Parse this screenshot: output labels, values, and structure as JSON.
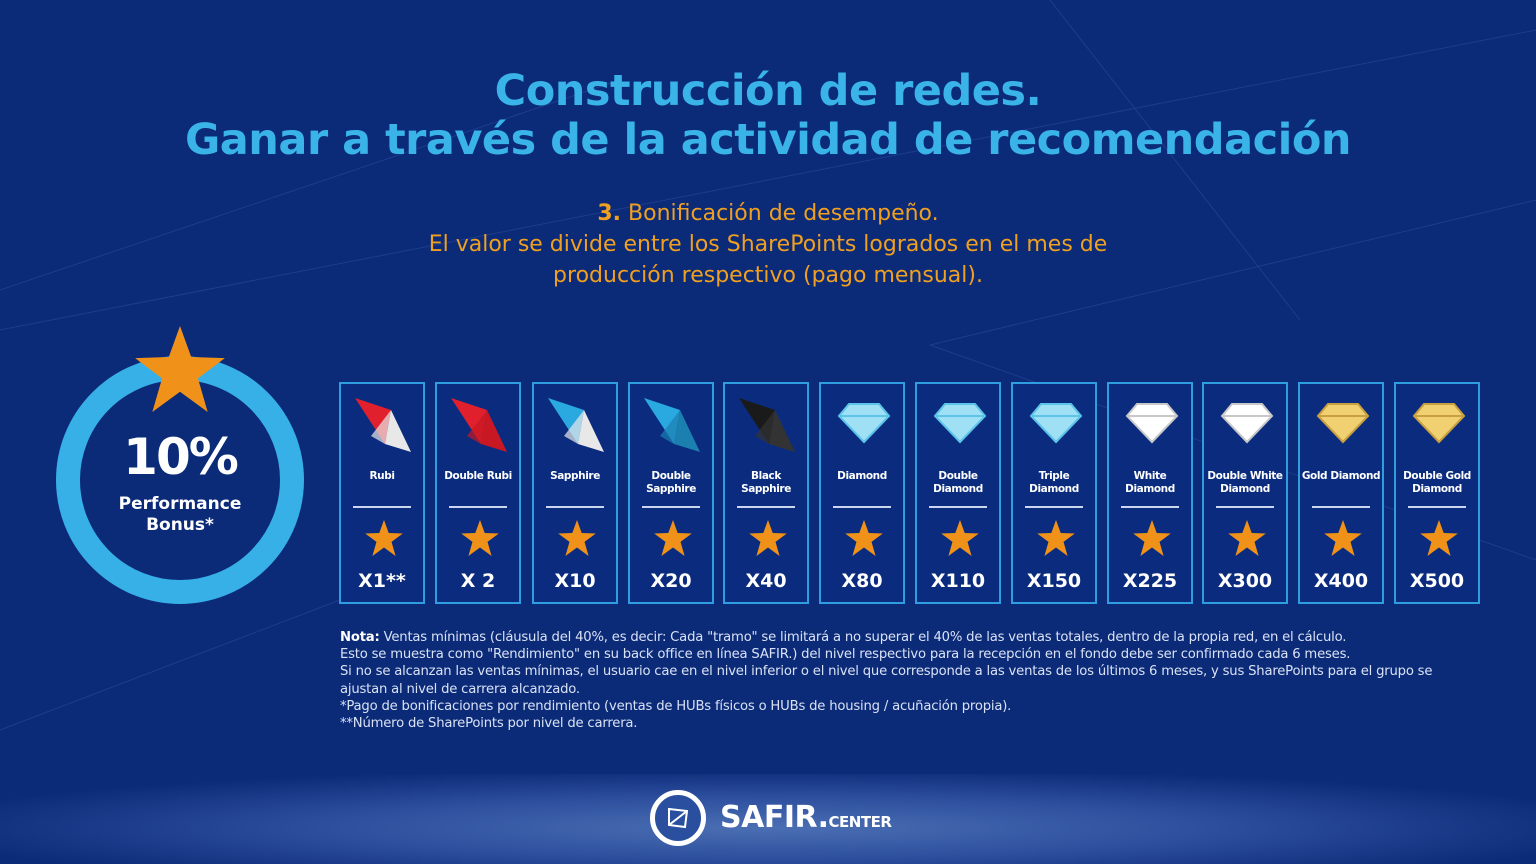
{
  "title": {
    "line1": "Construcción de redes.",
    "line2": "Ganar a través de la actividad de recomendación"
  },
  "subtitle": {
    "number": "3.",
    "line1": "Bonificación de desempeño.",
    "line2": "El valor se divide entre los SharePoints logrados en el mes de",
    "line3": "producción respectivo (pago mensual)."
  },
  "bonus": {
    "percent": "10%",
    "label_line1": "Performance",
    "label_line2": "Bonus*",
    "icon": "star-icon"
  },
  "levels": [
    {
      "name": "Rubi",
      "multiplier": "X1**",
      "gem": [
        "#e0202c",
        "#e8e8e8"
      ]
    },
    {
      "name": "Double Rubi",
      "multiplier": "X 2",
      "gem": [
        "#e0202c",
        "#c81824"
      ]
    },
    {
      "name": "Sapphire",
      "multiplier": "X10",
      "gem": [
        "#2aa8e0",
        "#e8e8e8"
      ]
    },
    {
      "name": "Double Sapphire",
      "multiplier": "X20",
      "gem": [
        "#2aa8e0",
        "#1b7fb0"
      ]
    },
    {
      "name": "Black Sapphire",
      "multiplier": "X40",
      "gem": [
        "#1a1a1a",
        "#333333"
      ]
    },
    {
      "name": "Diamond",
      "multiplier": "X80",
      "gem": [
        "#9fe0f5",
        "#5cc4e8"
      ]
    },
    {
      "name": "Double Diamond",
      "multiplier": "X110",
      "gem": [
        "#9fe0f5",
        "#5cc4e8"
      ]
    },
    {
      "name": "Triple Diamond",
      "multiplier": "X150",
      "gem": [
        "#9fe0f5",
        "#5cc4e8"
      ]
    },
    {
      "name": "White Diamond",
      "multiplier": "X225",
      "gem": [
        "#ffffff",
        "#c8c8c8"
      ]
    },
    {
      "name": "Double White Diamond",
      "multiplier": "X300",
      "gem": [
        "#ffffff",
        "#c8c8c8"
      ]
    },
    {
      "name": "Gold Diamond",
      "multiplier": "X400",
      "gem": [
        "#f0d070",
        "#c8a040"
      ]
    },
    {
      "name": "Double Gold Diamond",
      "multiplier": "X500",
      "gem": [
        "#f0d070",
        "#c8a040"
      ]
    }
  ],
  "note": {
    "label": "Nota:",
    "line1": " Ventas mínimas (cláusula del 40%, es decir: Cada \"tramo\" se limitará a no superar el 40% de las ventas totales, dentro de la propia red, en el cálculo.",
    "line2": "Esto se muestra como \"Rendimiento\" en su back office en línea SAFIR.) del nivel respectivo para la recepción en el fondo debe ser confirmado cada 6 meses.",
    "line3": "Si no se alcanzan las ventas mínimas, el usuario cae en el nivel inferior o el nivel que corresponde a las ventas de los últimos 6 meses, y sus SharePoints para el grupo se ajustan al nivel de carrera alcanzado.",
    "line4": " *Pago de bonificaciones por rendimiento (ventas de HUBs físicos o HUBs de housing / acuñación propia).",
    "line5": "**Número de SharePoints por nivel de carrera."
  },
  "footer": {
    "brand": "SAFIR.",
    "brand_suffix": "CENTER"
  },
  "colors": {
    "background": "#0b2a78",
    "title": "#3ab4e8",
    "subtitle": "#f0a020",
    "star": "#f0921a",
    "ring": "#36b0e6",
    "card_border": "#2f9ee0"
  }
}
